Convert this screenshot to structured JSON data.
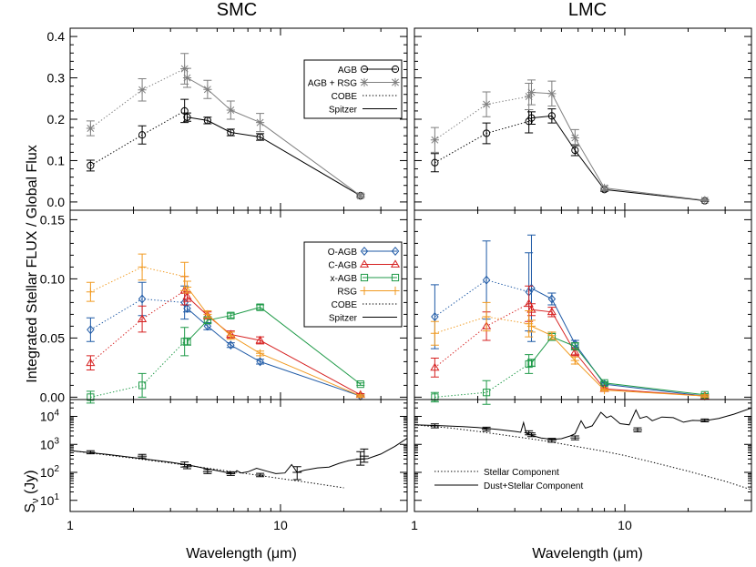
{
  "chart_data": [
    {
      "type": "line",
      "panel": "top",
      "column": "SMC",
      "title": "SMC",
      "xscale": "log",
      "xlim": [
        1,
        40
      ],
      "ylim": [
        -0.02,
        0.42
      ],
      "yticks": [
        "0.0",
        "0.1",
        "0.2",
        "0.3",
        "0.4"
      ],
      "legend_position": "top-right",
      "legend": [
        {
          "label": "AGB",
          "color": "#000000",
          "marker": "circle",
          "dash": "solid"
        },
        {
          "label": "AGB + RSG",
          "color": "#7f7f7f",
          "marker": "asterisk",
          "dash": "solid"
        },
        {
          "label": "COBE",
          "color": "#000000",
          "marker": "none",
          "dash": "dotted"
        },
        {
          "label": "Spitzer",
          "color": "#000000",
          "marker": "none",
          "dash": "solid"
        }
      ],
      "series": [
        {
          "name": "AGB",
          "color": "#000000",
          "marker": "circle",
          "cobe": {
            "x": [
              1.25,
              2.2,
              3.5
            ],
            "y": [
              0.088,
              0.162,
              0.22
            ],
            "err": [
              0.013,
              0.022,
              0.028
            ]
          },
          "spitzer": {
            "x": [
              3.6,
              4.5,
              5.8,
              8.0,
              24
            ],
            "y": [
              0.205,
              0.197,
              0.168,
              0.157,
              0.015
            ],
            "err": [
              0.01,
              0.008,
              0.008,
              0.008,
              0.004
            ]
          }
        },
        {
          "name": "AGB + RSG",
          "color": "#7f7f7f",
          "marker": "asterisk",
          "cobe": {
            "x": [
              1.25,
              2.2,
              3.5
            ],
            "y": [
              0.178,
              0.271,
              0.322
            ],
            "err": [
              0.018,
              0.027,
              0.037
            ]
          },
          "spitzer": {
            "x": [
              3.6,
              4.5,
              5.8,
              8.0,
              24
            ],
            "y": [
              0.3,
              0.272,
              0.222,
              0.192,
              0.015
            ],
            "err": [
              0.023,
              0.022,
              0.022,
              0.022,
              0.004
            ]
          }
        }
      ]
    },
    {
      "type": "line",
      "panel": "top",
      "column": "LMC",
      "title": "LMC",
      "xscale": "log",
      "xlim": [
        1,
        40
      ],
      "ylim": [
        -0.02,
        0.42
      ],
      "series": [
        {
          "name": "AGB",
          "color": "#000000",
          "marker": "circle",
          "cobe": {
            "x": [
              1.25,
              2.2,
              3.5
            ],
            "y": [
              0.095,
              0.166,
              0.195
            ],
            "err": [
              0.022,
              0.025,
              0.028
            ]
          },
          "spitzer": {
            "x": [
              3.6,
              4.5,
              5.8,
              8.0,
              24
            ],
            "y": [
              0.203,
              0.208,
              0.125,
              0.03,
              0.003
            ],
            "err": [
              0.015,
              0.017,
              0.013,
              0.004,
              0.002
            ]
          }
        },
        {
          "name": "AGB + RSG",
          "color": "#7f7f7f",
          "marker": "asterisk",
          "cobe": {
            "x": [
              1.25,
              2.2,
              3.5
            ],
            "y": [
              0.15,
              0.236,
              0.255
            ],
            "err": [
              0.03,
              0.03,
              0.032
            ]
          },
          "spitzer": {
            "x": [
              3.6,
              4.5,
              5.8,
              8.0,
              24
            ],
            "y": [
              0.265,
              0.262,
              0.155,
              0.034,
              0.004
            ],
            "err": [
              0.03,
              0.03,
              0.02,
              0.005,
              0.002
            ]
          }
        }
      ]
    },
    {
      "type": "line",
      "panel": "middle",
      "column": "SMC",
      "xscale": "log",
      "xlim": [
        1,
        40
      ],
      "ylim": [
        -0.002,
        0.158
      ],
      "yticks": [
        "0.00",
        "0.05",
        "0.10",
        "0.15"
      ],
      "legend_position": "top-right",
      "legend": [
        {
          "label": "O-AGB",
          "color": "#1f5aa6",
          "marker": "diamond",
          "dash": "solid"
        },
        {
          "label": "C-AGB",
          "color": "#d62020",
          "marker": "triangle",
          "dash": "solid"
        },
        {
          "label": "x-AGB",
          "color": "#1f9a48",
          "marker": "square",
          "dash": "solid"
        },
        {
          "label": "RSG",
          "color": "#f19a20",
          "marker": "plus",
          "dash": "solid"
        },
        {
          "label": "COBE",
          "color": "#000000",
          "marker": "none",
          "dash": "dotted"
        },
        {
          "label": "Spitzer",
          "color": "#000000",
          "marker": "none",
          "dash": "solid"
        }
      ],
      "series": [
        {
          "name": "O-AGB",
          "color": "#1f5aa6",
          "marker": "diamond",
          "cobe": {
            "x": [
              1.25,
              2.2,
              3.5
            ],
            "y": [
              0.057,
              0.083,
              0.08
            ],
            "err": [
              0.01,
              0.014,
              0.014
            ]
          },
          "spitzer": {
            "x": [
              3.6,
              4.5,
              5.8,
              8.0,
              24
            ],
            "y": [
              0.075,
              0.06,
              0.044,
              0.03,
              0.001
            ],
            "err": [
              0.003,
              0.003,
              0.002,
              0.002,
              0.001
            ]
          }
        },
        {
          "name": "C-AGB",
          "color": "#d62020",
          "marker": "triangle",
          "cobe": {
            "x": [
              1.25,
              2.2,
              3.5
            ],
            "y": [
              0.029,
              0.066,
              0.09
            ],
            "err": [
              0.006,
              0.011,
              0.012
            ]
          },
          "spitzer": {
            "x": [
              3.6,
              4.5,
              5.8,
              8.0,
              24
            ],
            "y": [
              0.085,
              0.069,
              0.053,
              0.048,
              0.002
            ],
            "err": [
              0.004,
              0.003,
              0.003,
              0.003,
              0.001
            ]
          }
        },
        {
          "name": "x-AGB",
          "color": "#1f9a48",
          "marker": "square",
          "cobe": {
            "x": [
              1.25,
              2.2,
              3.5
            ],
            "y": [
              0.0,
              0.01,
              0.047
            ],
            "err": [
              0.005,
              0.01,
              0.012
            ]
          },
          "spitzer": {
            "x": [
              3.6,
              4.5,
              5.8,
              8.0,
              24
            ],
            "y": [
              0.047,
              0.065,
              0.069,
              0.076,
              0.011
            ],
            "err": [
              0.003,
              0.003,
              0.002,
              0.002,
              0.001
            ]
          }
        },
        {
          "name": "RSG",
          "color": "#f19a20",
          "marker": "plus",
          "cobe": {
            "x": [
              1.25,
              2.2,
              3.5
            ],
            "y": [
              0.089,
              0.11,
              0.102
            ],
            "err": [
              0.008,
              0.011,
              0.012
            ]
          },
          "spitzer": {
            "x": [
              3.6,
              4.5,
              5.8,
              8.0,
              24
            ],
            "y": [
              0.093,
              0.07,
              0.052,
              0.037,
              0.001
            ],
            "err": [
              0.005,
              0.003,
              0.003,
              0.002,
              0.001
            ]
          }
        }
      ]
    },
    {
      "type": "line",
      "panel": "middle",
      "column": "LMC",
      "xscale": "log",
      "xlim": [
        1,
        40
      ],
      "ylim": [
        -0.002,
        0.158
      ],
      "series": [
        {
          "name": "O-AGB",
          "color": "#1f5aa6",
          "marker": "diamond",
          "cobe": {
            "x": [
              1.25,
              2.2,
              3.5
            ],
            "y": [
              0.068,
              0.099,
              0.089
            ],
            "err": [
              0.027,
              0.033,
              0.033
            ]
          },
          "spitzer": {
            "x": [
              3.6,
              4.5,
              5.8,
              8.0,
              24
            ],
            "y": [
              0.092,
              0.083,
              0.045,
              0.011,
              0.001
            ],
            "err": [
              0.045,
              0.005,
              0.003,
              0.001,
              0.001
            ]
          }
        },
        {
          "name": "C-AGB",
          "color": "#d62020",
          "marker": "triangle",
          "cobe": {
            "x": [
              1.25,
              2.2,
              3.5
            ],
            "y": [
              0.025,
              0.06,
              0.079
            ],
            "err": [
              0.008,
              0.012,
              0.015
            ]
          },
          "spitzer": {
            "x": [
              3.6,
              4.5,
              5.8,
              8.0,
              24
            ],
            "y": [
              0.074,
              0.072,
              0.038,
              0.007,
              0.001
            ],
            "err": [
              0.005,
              0.004,
              0.003,
              0.001,
              0.001
            ]
          }
        },
        {
          "name": "x-AGB",
          "color": "#1f9a48",
          "marker": "square",
          "cobe": {
            "x": [
              1.25,
              2.2,
              3.5
            ],
            "y": [
              0.0,
              0.004,
              0.028
            ],
            "err": [
              0.004,
              0.01,
              0.008
            ]
          },
          "spitzer": {
            "x": [
              3.6,
              4.5,
              5.8,
              8.0,
              24
            ],
            "y": [
              0.029,
              0.051,
              0.043,
              0.012,
              0.002
            ],
            "err": [
              0.003,
              0.003,
              0.003,
              0.001,
              0.001
            ]
          }
        },
        {
          "name": "RSG",
          "color": "#f19a20",
          "marker": "plus",
          "cobe": {
            "x": [
              1.25,
              2.2,
              3.5
            ],
            "y": [
              0.054,
              0.068,
              0.062
            ],
            "err": [
              0.01,
              0.012,
              0.011
            ]
          },
          "spitzer": {
            "x": [
              3.6,
              4.5,
              5.8,
              8.0,
              24
            ],
            "y": [
              0.06,
              0.052,
              0.031,
              0.006,
              0.001
            ],
            "err": [
              0.005,
              0.003,
              0.003,
              0.001,
              0.001
            ]
          }
        }
      ]
    },
    {
      "type": "line",
      "panel": "bottom",
      "column": "SMC",
      "xscale": "log",
      "yscale": "log",
      "xlim": [
        1,
        40
      ],
      "ylim": [
        4,
        40000
      ],
      "xlabel": "Wavelength (μm)",
      "xticks": [
        "1",
        "10"
      ],
      "yticks": [
        "10",
        "10",
        "10",
        "10"
      ],
      "ytick_exponents": [
        "1",
        "2",
        "3",
        "4"
      ],
      "stellar_component": {
        "x": [
          1,
          2,
          3,
          4,
          6,
          8,
          10,
          14,
          20
        ],
        "y": [
          600,
          320,
          215,
          160,
          104,
          77,
          60,
          42,
          28
        ]
      },
      "dust_stellar_component": {
        "x": [
          1,
          1.5,
          2,
          3,
          3.3,
          3.6,
          4,
          4.5,
          5,
          5.5,
          6,
          6.2,
          6.5,
          7,
          7.7,
          8.6,
          9.5,
          10.5,
          11.3,
          12,
          13,
          15,
          17,
          19,
          21,
          23,
          26,
          30,
          35,
          40
        ],
        "y": [
          600,
          440,
          340,
          230,
          205,
          185,
          160,
          132,
          115,
          100,
          92,
          115,
          95,
          105,
          140,
          110,
          90,
          95,
          190,
          100,
          120,
          145,
          155,
          210,
          260,
          290,
          310,
          450,
          850,
          1650
        ]
      },
      "photometry": {
        "x": [
          1.25,
          2.2,
          3.5,
          3.6,
          4.5,
          5.8,
          8.0,
          12,
          24,
          25
        ],
        "y": [
          520,
          380,
          190,
          160,
          105,
          90,
          80,
          100,
          300,
          380
        ],
        "err_lo": [
          60,
          50,
          35,
          25,
          15,
          12,
          10,
          45,
          120,
          150
        ],
        "err_hi": [
          70,
          60,
          45,
          30,
          20,
          15,
          12,
          60,
          250,
          300
        ]
      }
    },
    {
      "type": "line",
      "panel": "bottom",
      "column": "LMC",
      "xscale": "log",
      "yscale": "log",
      "xlim": [
        1,
        40
      ],
      "ylim": [
        4,
        40000
      ],
      "xlabel": "Wavelength (μm)",
      "xticks": [
        "1",
        "10"
      ],
      "legend_position": "bottom-left",
      "legend": [
        {
          "label": "Stellar Component",
          "dash": "dotted"
        },
        {
          "label": "Dust+Stellar Component",
          "dash": "solid"
        }
      ],
      "stellar_component": {
        "x": [
          1,
          1.5,
          2,
          3,
          4,
          5,
          6,
          8,
          10,
          15,
          20,
          30,
          40
        ],
        "y": [
          5000,
          3800,
          2900,
          1900,
          1400,
          1050,
          820,
          560,
          400,
          190,
          110,
          48,
          24
        ]
      },
      "dust_stellar_component": {
        "x": [
          1,
          1.3,
          1.7,
          2,
          2.5,
          3,
          3.2,
          3.3,
          3.4,
          3.6,
          4,
          4.5,
          5,
          5.5,
          5.8,
          6.2,
          6.5,
          7,
          7.7,
          8.2,
          8.6,
          9.5,
          10.5,
          11.3,
          11.8,
          12.7,
          13.5,
          15,
          17,
          19,
          21,
          24,
          28,
          33,
          40
        ],
        "y": [
          5000,
          4700,
          4300,
          4000,
          3400,
          2900,
          2700,
          6000,
          2500,
          2100,
          1700,
          1500,
          1600,
          2000,
          2400,
          7000,
          3800,
          4600,
          14000,
          9000,
          10500,
          5500,
          5000,
          17000,
          8500,
          10000,
          7000,
          9500,
          9000,
          6200,
          7200,
          7000,
          8500,
          12000,
          20000
        ]
      },
      "photometry": {
        "x": [
          1.25,
          2.2,
          3.5,
          3.6,
          4.5,
          5.8,
          11.5,
          24
        ],
        "y": [
          4600,
          3500,
          2600,
          2200,
          1400,
          1700,
          3300,
          7200
        ],
        "err_lo": [
          700,
          500,
          400,
          300,
          200,
          250,
          500,
          800
        ],
        "err_hi": [
          800,
          600,
          450,
          350,
          250,
          300,
          600,
          900
        ]
      }
    }
  ],
  "columns": {
    "left_title": "SMC",
    "right_title": "LMC"
  },
  "axes": {
    "ylabel_main": "Integrated Stellar FLUX / Global Flux",
    "ylabel_sed": "S",
    "ylabel_sed_sub": "ν",
    "ylabel_sed_unit": " (Jy)",
    "xlabel_left": "Wavelength (μm)",
    "xlabel_right": "Wavelength (μm)"
  },
  "colors": {
    "frame": "#000000",
    "agb_rsg": "#7f7f7f",
    "o_agb": "#1f5aa6",
    "c_agb": "#d62020",
    "x_agb": "#1f9a48",
    "rsg": "#f19a20"
  }
}
